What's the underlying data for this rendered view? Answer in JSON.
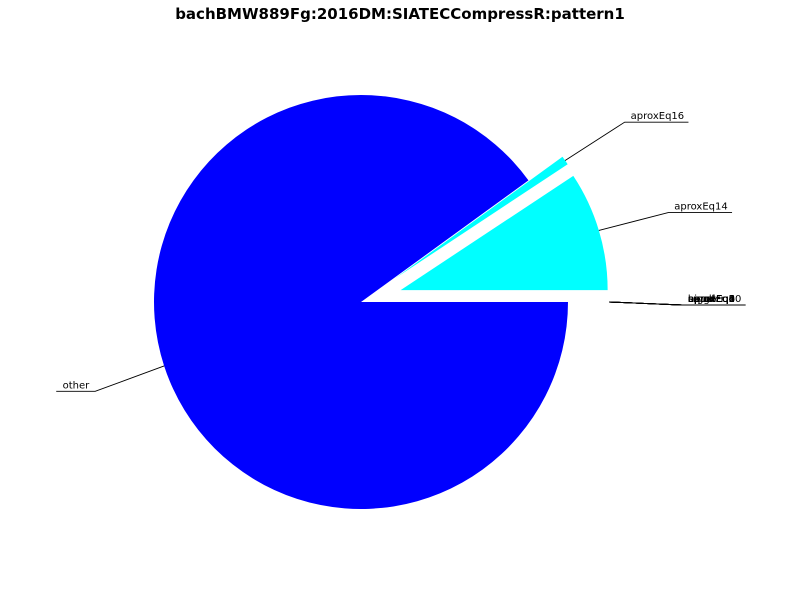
{
  "chart_data": {
    "type": "pie",
    "title": "bachBMW889Fg:2016DM:SIATECCompressR:pattern1",
    "slices": [
      {
        "label": "other",
        "value": 90.0,
        "color": "#0000ff",
        "exploded": false
      },
      {
        "label": "aproxEq16",
        "value": 0.7,
        "color": "#00ffff",
        "exploded": true
      },
      {
        "label": "aproxEq14",
        "value": 9.3,
        "color": "#00ffff",
        "exploded": true
      },
      {
        "label": "aproxEq10",
        "value": 0.0,
        "color": "#00ffff",
        "exploded": true
      },
      {
        "label": "aproxEq8",
        "value": 0.0,
        "color": "#00ffff",
        "exploded": true
      },
      {
        "label": "aproxEq6",
        "value": 0.0,
        "color": "#00ffff",
        "exploded": true
      },
      {
        "label": "aproxEq4",
        "value": 0.0,
        "color": "#00ffff",
        "exploded": true
      },
      {
        "label": "aproxEq2",
        "value": 0.0,
        "color": "#00ffff",
        "exploded": true
      },
      {
        "label": "aproxEq0",
        "value": 0.0,
        "color": "#00ffff",
        "exploded": true
      },
      {
        "label": "equal",
        "value": 0.0,
        "color": "#00ffff",
        "exploded": true
      },
      {
        "label": "exact",
        "value": 0.0,
        "color": "#00ffff",
        "exploded": true
      },
      {
        "label": "bigger",
        "value": 0.0,
        "color": "#00ffff",
        "exploded": true
      },
      {
        "label": "smaller",
        "value": 0.0,
        "color": "#00ffff",
        "exploded": true
      }
    ],
    "legend": "none",
    "grid": false
  }
}
